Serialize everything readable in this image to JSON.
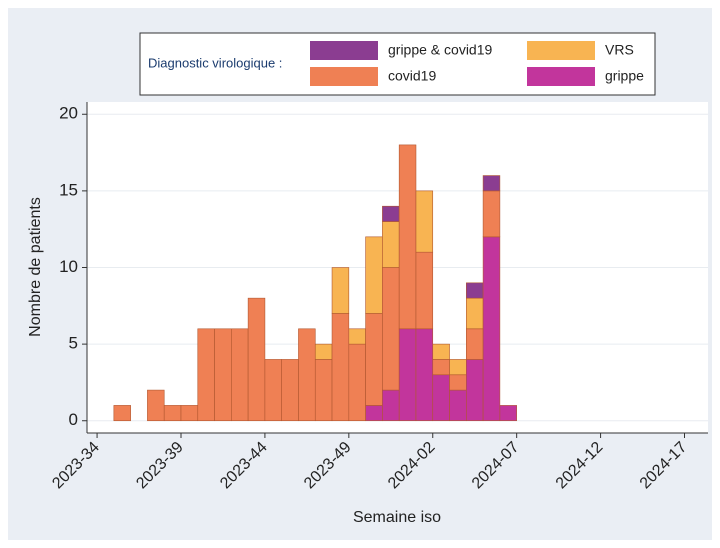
{
  "chart_data": {
    "type": "histogram",
    "x_label": "Semaine iso",
    "y_label": "Nombre de patients",
    "legend_title": "Diagnostic virologique :",
    "legend": "top",
    "grid": true,
    "stacked": true,
    "bins": [
      35,
      36,
      37,
      38,
      39,
      40,
      41,
      42,
      43,
      44,
      45,
      46,
      47,
      48,
      49,
      50,
      51,
      52,
      53,
      54,
      55,
      56,
      57,
      58,
      59
    ],
    "series": [
      {
        "name": "grippe",
        "color": "#c2359c",
        "values": [
          0,
          0,
          0,
          0,
          0,
          0,
          0,
          0,
          0,
          0,
          0,
          0,
          0,
          0,
          0,
          1,
          2,
          6,
          6,
          3,
          2,
          4,
          12,
          1
        ]
      },
      {
        "name": "covid19",
        "color": "#ef8054",
        "values": [
          1,
          0,
          2,
          1,
          1,
          6,
          6,
          6,
          8,
          4,
          4,
          6,
          4,
          7,
          5,
          6,
          8,
          12,
          5,
          1,
          1,
          2,
          3,
          0
        ]
      },
      {
        "name": "VRS",
        "color": "#f8b452",
        "values": [
          0,
          0,
          0,
          0,
          0,
          0,
          0,
          0,
          0,
          0,
          0,
          0,
          1,
          3,
          1,
          5,
          3,
          0,
          4,
          1,
          1,
          2,
          0,
          0
        ]
      },
      {
        "name": "grippe & covid19",
        "color": "#8b3d91",
        "values": [
          0,
          0,
          0,
          0,
          0,
          0,
          0,
          0,
          0,
          0,
          0,
          0,
          0,
          0,
          0,
          0,
          1,
          0,
          0,
          0,
          0,
          1,
          1,
          0
        ]
      }
    ],
    "xlim": [
      33.4,
      70.4
    ],
    "xticks": [
      {
        "value": 34,
        "label": "2023-34"
      },
      {
        "value": 39,
        "label": "2023-39"
      },
      {
        "value": 44,
        "label": "2023-44"
      },
      {
        "value": 49,
        "label": "2023-49"
      },
      {
        "value": 54,
        "label": "2024-02"
      },
      {
        "value": 59,
        "label": "2024-07"
      },
      {
        "value": 64,
        "label": "2024-12"
      },
      {
        "value": 69,
        "label": "2024-17"
      }
    ],
    "ylim": [
      -0.8,
      20.8
    ],
    "yticks": [
      0,
      5,
      10,
      15,
      20
    ]
  }
}
